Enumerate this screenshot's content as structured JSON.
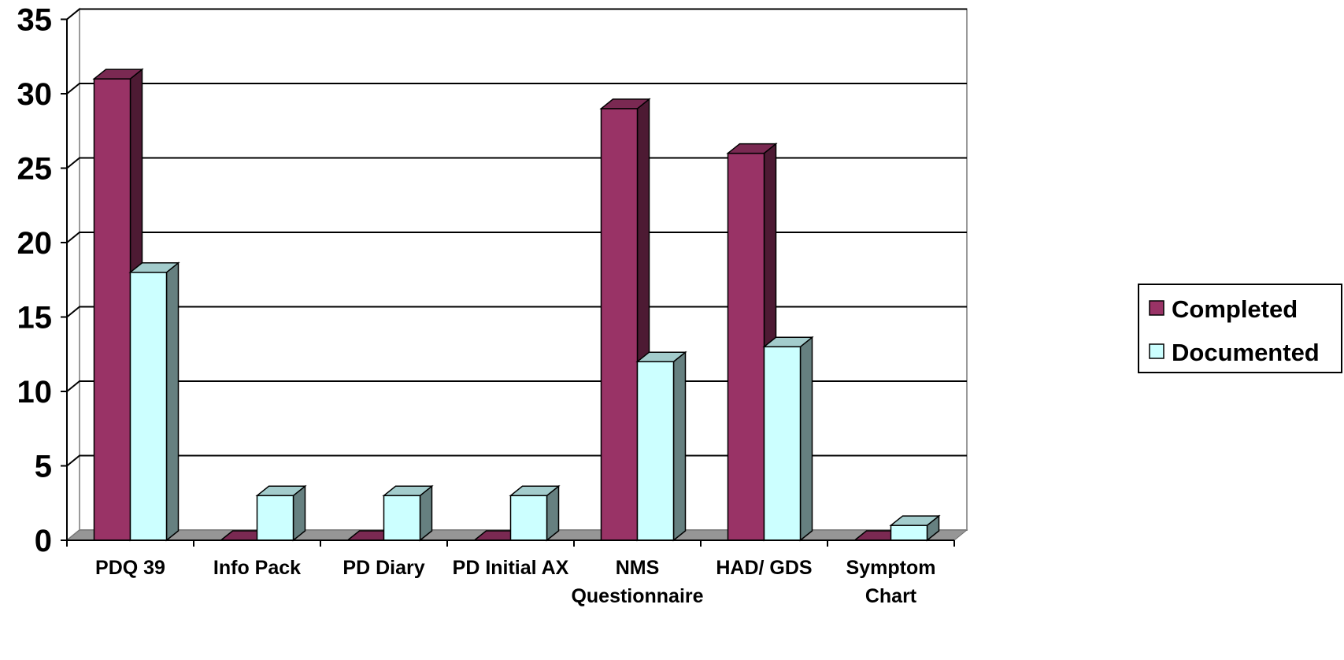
{
  "chart_data": {
    "type": "bar",
    "title": "",
    "xlabel": "",
    "ylabel": "",
    "categories": [
      [
        "PDQ 39"
      ],
      [
        "Info Pack"
      ],
      [
        "PD Diary"
      ],
      [
        "PD Initial AX"
      ],
      [
        "NMS",
        "Questionnaire"
      ],
      [
        "HAD/ GDS"
      ],
      [
        "Symptom",
        "Chart"
      ]
    ],
    "series": [
      {
        "name": "Completed",
        "values": [
          31,
          0,
          0,
          0,
          29,
          26,
          0
        ],
        "color": "#993366",
        "side_color": "#4d1a33",
        "top_color": "#7a2952"
      },
      {
        "name": "Documented",
        "values": [
          18,
          3,
          3,
          3,
          12,
          13,
          1
        ],
        "color": "#ccffff",
        "side_color": "#668080",
        "top_color": "#a3cccc"
      }
    ],
    "ylim": [
      0,
      35
    ],
    "yticks": [
      0,
      5,
      10,
      15,
      20,
      25,
      30,
      35
    ],
    "grid": true,
    "legend_position": "right",
    "three_d": true
  }
}
